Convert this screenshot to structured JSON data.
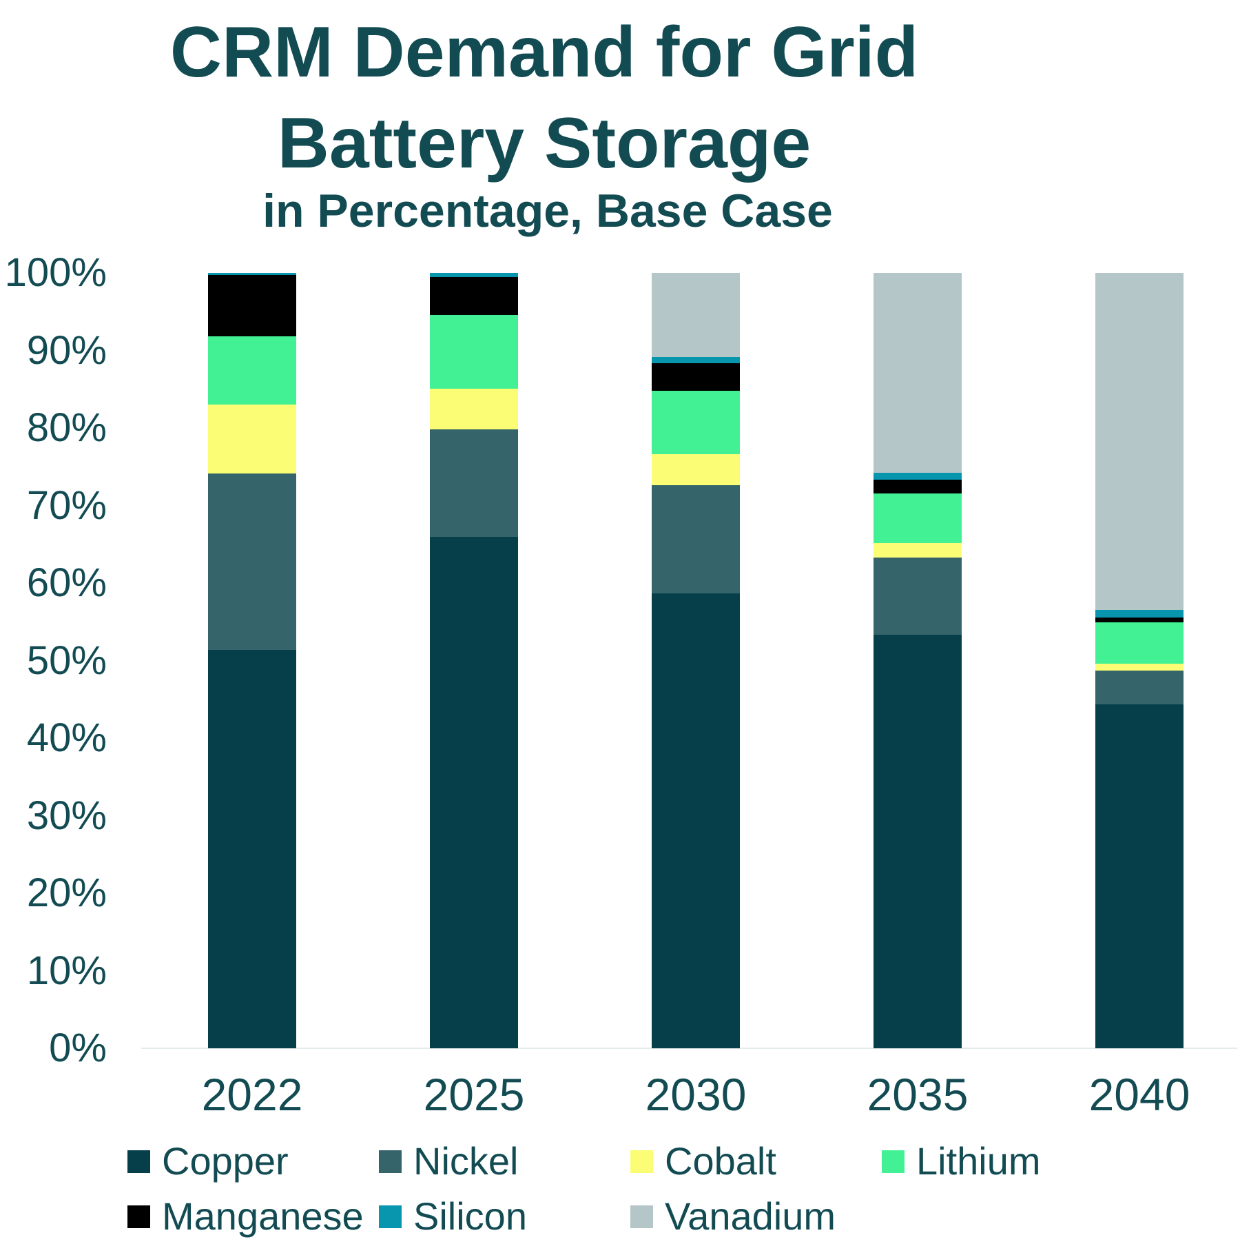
{
  "header": {
    "title_line1": "CRM Demand for Grid",
    "title_line2": "Battery Storage",
    "subtitle": "in Percentage, Base Case"
  },
  "colors": {
    "copper": "#063f4a",
    "nickel": "#35646b",
    "cobalt": "#fbfd74",
    "lithium": "#43f195",
    "manganese": "#000000",
    "silicon": "#0895ae",
    "vanadium": "#b5c6c9",
    "text": "#134b53",
    "baseline": "#e3ebeb"
  },
  "chart_data": {
    "type": "bar",
    "variant": "stacked-100-percent",
    "title": "CRM Demand for Grid Battery Storage",
    "subtitle": "in Percentage, Base Case",
    "categories": [
      "2022",
      "2025",
      "2030",
      "2035",
      "2040"
    ],
    "series": [
      {
        "name": "Copper",
        "color_key": "copper",
        "values": [
          51.4,
          66.0,
          58.7,
          53.3,
          44.4
        ]
      },
      {
        "name": "Nickel",
        "color_key": "nickel",
        "values": [
          22.7,
          13.8,
          13.9,
          10.0,
          4.3
        ]
      },
      {
        "name": "Cobalt",
        "color_key": "cobalt",
        "values": [
          8.9,
          5.3,
          4.0,
          1.9,
          0.9
        ]
      },
      {
        "name": "Lithium",
        "color_key": "lithium",
        "values": [
          8.8,
          9.5,
          8.2,
          6.4,
          5.3
        ]
      },
      {
        "name": "Manganese",
        "color_key": "manganese",
        "values": [
          7.9,
          4.9,
          3.6,
          1.7,
          0.7
        ]
      },
      {
        "name": "Silicon",
        "color_key": "silicon",
        "values": [
          0.3,
          0.5,
          0.8,
          0.9,
          0.9
        ]
      },
      {
        "name": "Vanadium",
        "color_key": "vanadium",
        "values": [
          0.0,
          0.0,
          10.8,
          25.8,
          43.5
        ]
      }
    ],
    "stack_order_bottom_to_top": [
      "Copper",
      "Nickel",
      "Cobalt",
      "Lithium",
      "Manganese",
      "Silicon",
      "Vanadium"
    ],
    "y_ticks": [
      "0%",
      "10%",
      "20%",
      "30%",
      "40%",
      "50%",
      "60%",
      "70%",
      "80%",
      "90%",
      "100%"
    ],
    "ylim": [
      0,
      100
    ],
    "grid": false,
    "legend_position": "bottom",
    "legend_rows": [
      [
        "Copper",
        "Nickel",
        "Cobalt",
        "Lithium"
      ],
      [
        "Manganese",
        "Silicon",
        "Vanadium"
      ]
    ]
  }
}
